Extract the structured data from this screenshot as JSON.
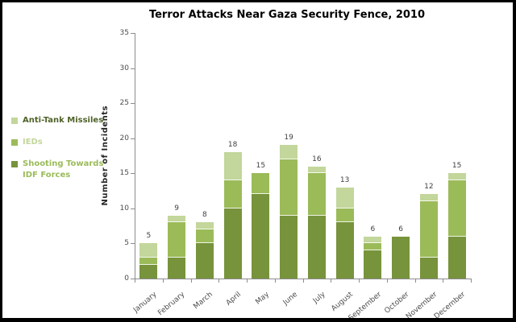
{
  "chart_data": {
    "type": "bar",
    "stacked": true,
    "title": "Terror Attacks Near Gaza Security Fence, 2010",
    "xlabel": "",
    "ylabel": "Number of Incidents",
    "ylim": [
      0,
      35
    ],
    "yticks": [
      0,
      5,
      10,
      15,
      20,
      25,
      30,
      35
    ],
    "grid": false,
    "legend_position": "left",
    "plot_background": "#ffffff",
    "axis_color": "#8c8c8c",
    "categories": [
      "January",
      "February",
      "March",
      "April",
      "May",
      "June",
      "July",
      "August",
      "September",
      "October",
      "November",
      "December"
    ],
    "series": [
      {
        "name": "Shooting Towards IDF Forces",
        "color": "#77933C",
        "values": [
          2,
          3,
          5,
          10,
          12,
          9,
          9,
          8,
          4,
          6,
          3,
          6
        ]
      },
      {
        "name": "IEDs",
        "color": "#9BBB59",
        "values": [
          1,
          5,
          2,
          4,
          3,
          8,
          6,
          2,
          1,
          0,
          8,
          8
        ]
      },
      {
        "name": "Anti-Tank Missiles",
        "color": "#C3D69B",
        "values": [
          2,
          1,
          1,
          4,
          0,
          2,
          1,
          3,
          1,
          0,
          1,
          1
        ]
      }
    ],
    "totals": [
      5,
      9,
      8,
      18,
      15,
      19,
      16,
      13,
      6,
      6,
      12,
      15
    ]
  },
  "legend": {
    "items": [
      {
        "label": "Anti-Tank Missiles",
        "swatch_color": "#C3D69B",
        "text_color": "#4F6228"
      },
      {
        "label": "IEDs",
        "swatch_color": "#9BBB59",
        "text_color": "#C3D69B"
      },
      {
        "label": "Shooting Towards IDF Forces",
        "swatch_color": "#77933C",
        "text_color": "#9BBB59"
      }
    ]
  }
}
